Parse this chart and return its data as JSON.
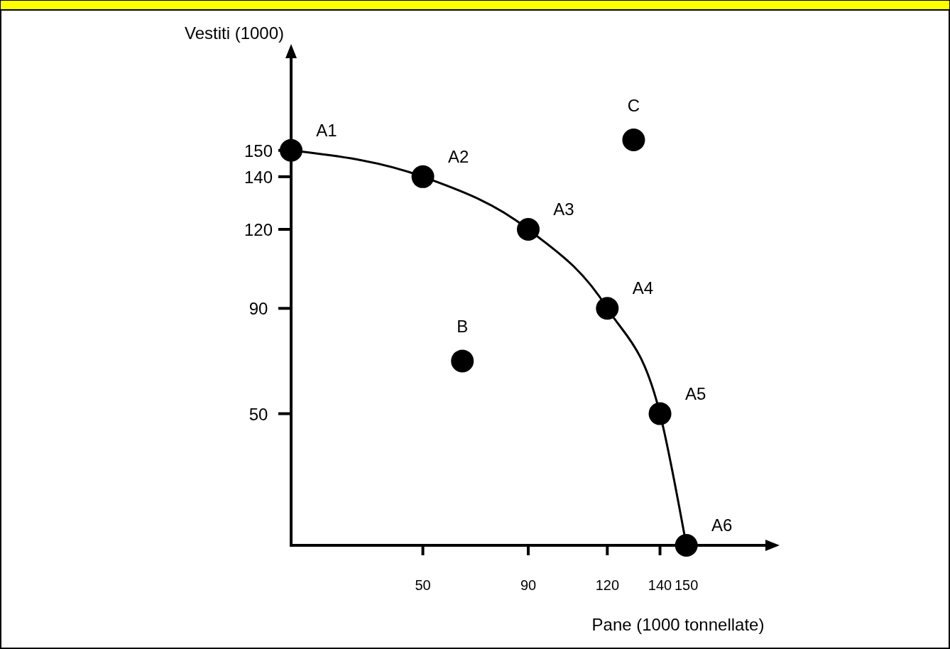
{
  "chart_data": {
    "type": "line",
    "xlabel": "Pane (1000 tonnellate)",
    "ylabel": "Vestiti (1000)",
    "xlim": [
      0,
      180
    ],
    "ylim": [
      0,
      185
    ],
    "xticks": [
      50,
      90,
      120,
      140,
      150
    ],
    "yticks": [
      50,
      90,
      120,
      140,
      150
    ],
    "grid": false,
    "marker": "circle",
    "line_style": "solid",
    "series": [
      {
        "color": "#000000",
        "x": [
          0,
          50,
          90,
          120,
          140,
          150
        ],
        "values": [
          150,
          140,
          120,
          90,
          50,
          0
        ]
      },
      {
        "type": "scatter",
        "color": "#000000",
        "x": [
          65,
          130
        ],
        "values": [
          70,
          154
        ]
      }
    ],
    "annotations": [
      {
        "text": "A1",
        "x": 0,
        "y": 150
      },
      {
        "text": "A2",
        "x": 50,
        "y": 140
      },
      {
        "text": "A3",
        "x": 90,
        "y": 120
      },
      {
        "text": "A4",
        "x": 120,
        "y": 90
      },
      {
        "text": "A5",
        "x": 140,
        "y": 50
      },
      {
        "text": "A6",
        "x": 150,
        "y": 0
      },
      {
        "text": "B",
        "x": 65,
        "y": 70
      },
      {
        "text": "C",
        "x": 130,
        "y": 154
      }
    ]
  }
}
